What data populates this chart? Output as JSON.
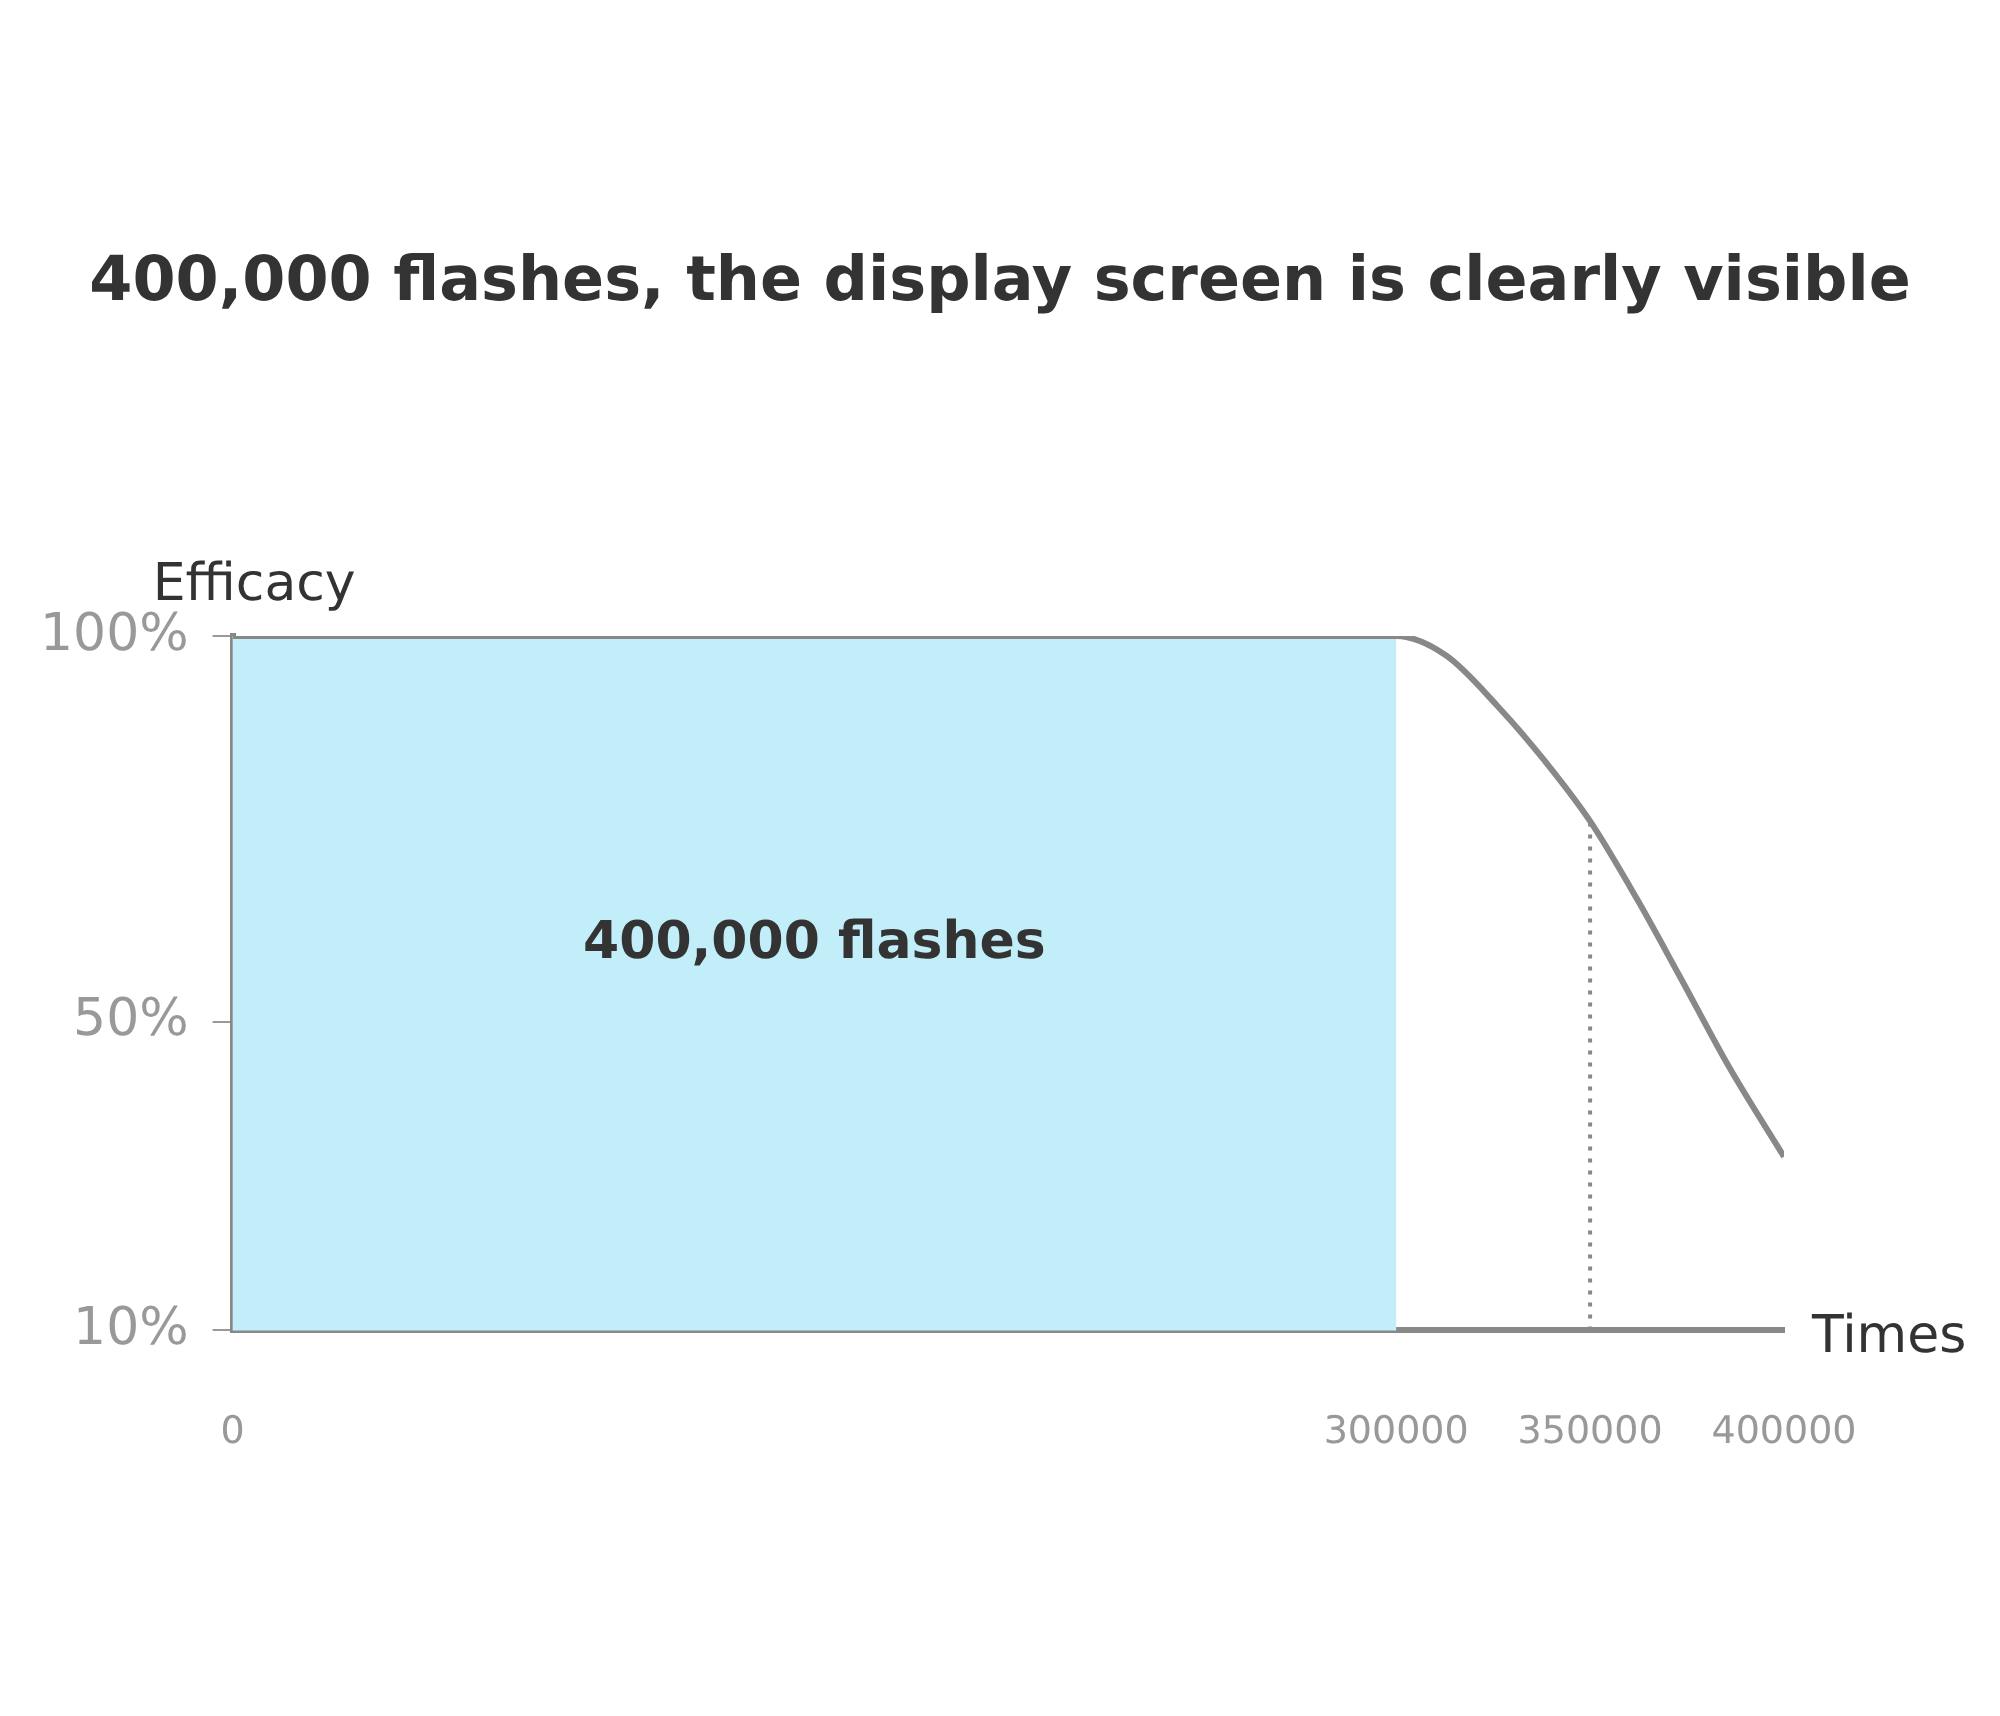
{
  "chart_data": {
    "type": "line",
    "title": "400,000 flashes, the display screen is clearly visible",
    "xlabel": "Times",
    "ylabel": "Efficacy",
    "x": [
      0,
      300000,
      312800,
      326000,
      338000,
      350000,
      362000,
      373000,
      386000,
      400000
    ],
    "series": [
      {
        "color": "#888888",
        "values": [
          100,
          100,
          97.5,
          91,
          84,
          76,
          66,
          56,
          44,
          32.5
        ]
      }
    ],
    "xlim": [
      0,
      400000
    ],
    "ylim": [
      10,
      100
    ],
    "xticks": [
      0,
      300000,
      350000,
      400000
    ],
    "yticks": [
      {
        "value": 10,
        "label": "10%"
      },
      {
        "value": 50,
        "label": "50%"
      },
      {
        "value": 100,
        "label": "100%"
      }
    ],
    "bands": [
      {
        "axis": "x",
        "from": 0,
        "to": 300000,
        "label": "400,000 flashes",
        "color": "#c2eefa"
      }
    ],
    "ref_lines": [
      {
        "axis": "x",
        "value": 350000,
        "line_style": "dotted",
        "color": "#888888"
      }
    ],
    "grid": false,
    "marker": "none",
    "line_style": "solid"
  }
}
